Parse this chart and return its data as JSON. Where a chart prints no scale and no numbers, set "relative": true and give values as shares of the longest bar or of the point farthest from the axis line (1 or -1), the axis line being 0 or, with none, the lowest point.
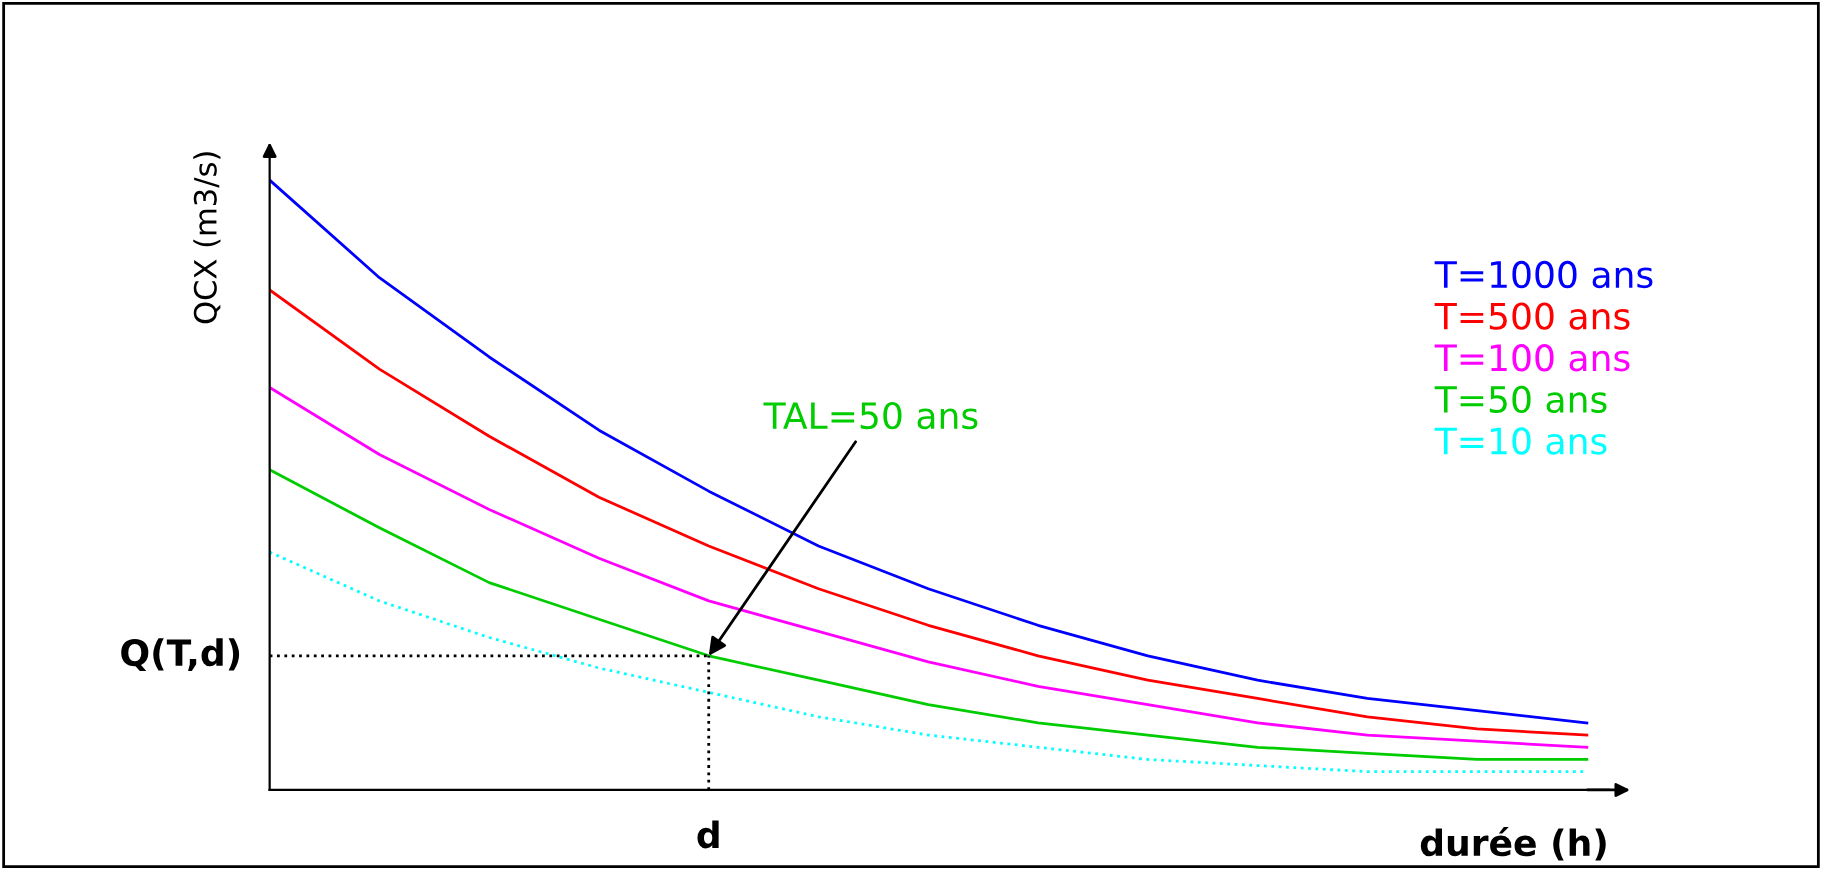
{
  "chart_data": {
    "type": "line",
    "relative": true,
    "xlabel": "durée (h)",
    "ylabel": "QCX (m3/s)",
    "categories": [
      null,
      null,
      null,
      null,
      null,
      null,
      null,
      null,
      null,
      null,
      null,
      null,
      null
    ],
    "series": [
      {
        "name": "T=1000 ans",
        "color": "#0000ff",
        "values": [
          1.0,
          0.84,
          0.71,
          0.59,
          0.49,
          0.4,
          0.33,
          0.27,
          0.22,
          0.18,
          0.15,
          0.13,
          0.11
        ]
      },
      {
        "name": "T=500 ans",
        "color": "#ff0000",
        "values": [
          0.82,
          0.69,
          0.58,
          0.48,
          0.4,
          0.33,
          0.27,
          0.22,
          0.18,
          0.15,
          0.12,
          0.1,
          0.09
        ]
      },
      {
        "name": "T=100 ans",
        "color": "#ff00ff",
        "values": [
          0.66,
          0.55,
          0.46,
          0.38,
          0.31,
          0.26,
          0.21,
          0.17,
          0.14,
          0.11,
          0.09,
          0.08,
          0.07
        ]
      },
      {
        "name": "T=50 ans",
        "color": "#00cc00",
        "values": [
          0.525,
          0.43,
          0.34,
          0.28,
          0.22,
          0.18,
          0.14,
          0.11,
          0.09,
          0.07,
          0.06,
          0.05,
          0.05
        ]
      },
      {
        "name": "T=10 ans",
        "color": "#00ffff",
        "line_style": "dotted",
        "values": [
          0.39,
          0.31,
          0.25,
          0.2,
          0.16,
          0.12,
          0.09,
          0.07,
          0.05,
          0.04,
          0.03,
          0.03,
          0.03
        ]
      }
    ],
    "ref_lines": [
      {
        "axis": "y",
        "value": 0.22,
        "label": "Q(T,d)",
        "line_style": "dotted"
      }
    ],
    "annotations": [
      "TAL=50 ans",
      "d"
    ]
  }
}
